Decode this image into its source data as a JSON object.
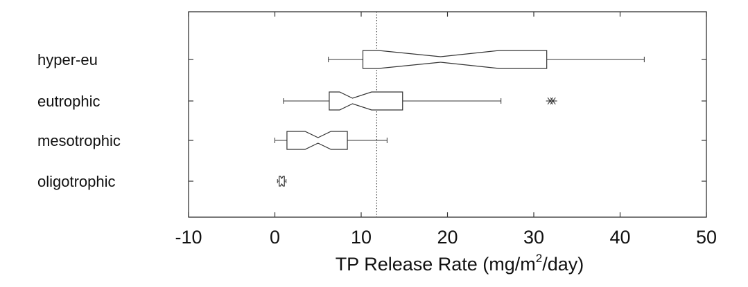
{
  "chart_data": {
    "type": "boxplot",
    "orientation": "horizontal",
    "xlabel_parts": {
      "prefix": "TP Release Rate (mg/m",
      "superscript": "2",
      "suffix": "/day)"
    },
    "xlim": [
      -10,
      50
    ],
    "xticks": [
      -10,
      0,
      10,
      20,
      30,
      40,
      50
    ],
    "reference_line_x": 11.8,
    "grid": false,
    "categories": [
      "hyper-eu",
      "eutrophic",
      "mesotrophic",
      "oligotrophic"
    ],
    "boxes": [
      {
        "category": "hyper-eu",
        "whisker_low": 6.2,
        "q1": 10.2,
        "median": 19.2,
        "q3": 31.5,
        "whisker_high": 42.8,
        "notch_low": 12.0,
        "notch_high": 26.0,
        "outliers": []
      },
      {
        "category": "eutrophic",
        "whisker_low": 1.0,
        "q1": 6.3,
        "median": 9.0,
        "q3": 14.8,
        "whisker_high": 26.2,
        "notch_low": 7.5,
        "notch_high": 11.2,
        "outliers": [
          31.9
        ]
      },
      {
        "category": "mesotrophic",
        "whisker_low": 0.0,
        "q1": 1.4,
        "median": 5.0,
        "q3": 8.4,
        "whisker_high": 13.0,
        "notch_low": 3.5,
        "notch_high": 6.5,
        "outliers": []
      },
      {
        "category": "oligotrophic",
        "whisker_low": 0.3,
        "q1": 0.5,
        "median": 0.8,
        "q3": 1.1,
        "whisker_high": 1.3,
        "notch_low": 0.65,
        "notch_high": 0.95,
        "outliers": []
      }
    ]
  }
}
